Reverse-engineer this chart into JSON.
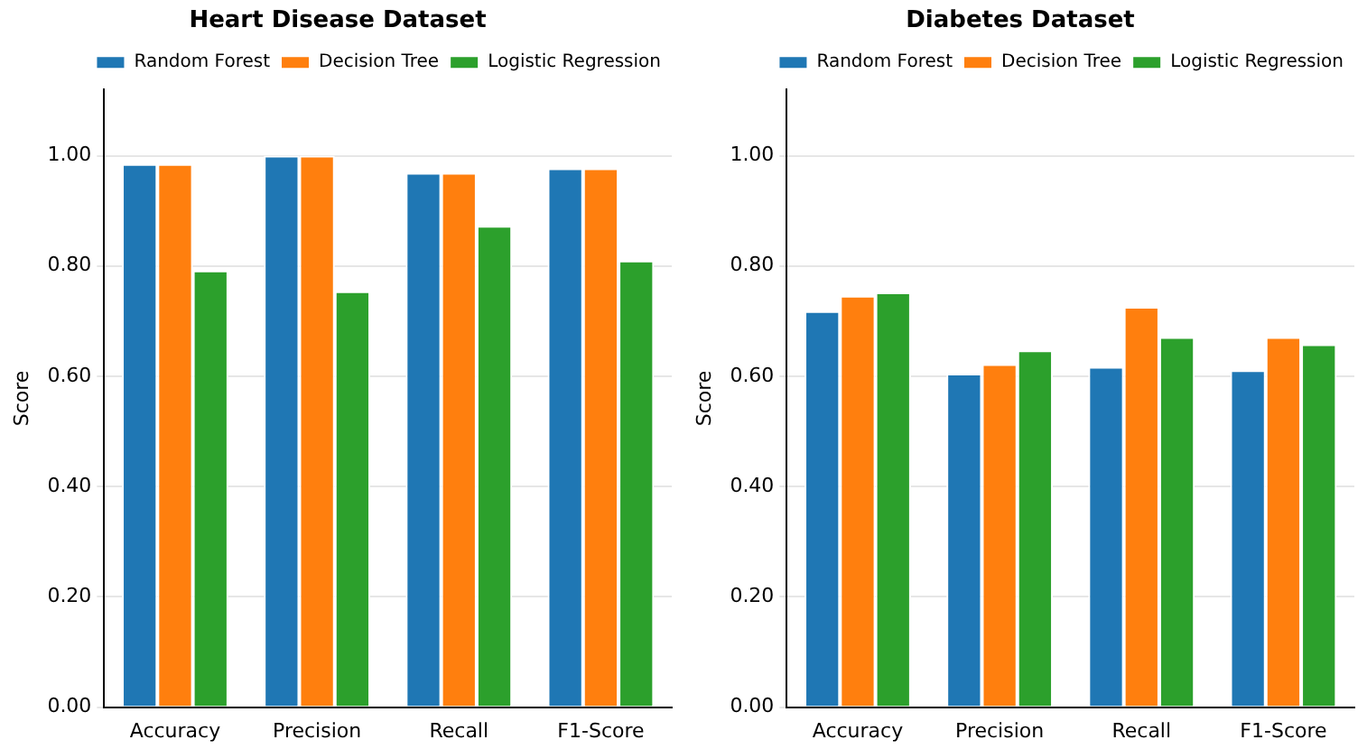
{
  "chart_data": [
    {
      "type": "bar",
      "title": "Heart Disease Dataset",
      "ylabel": "Score",
      "categories": [
        "Accuracy",
        "Precision",
        "Recall",
        "F1-Score"
      ],
      "series": [
        {
          "name": "Random Forest",
          "color": "#1f77b4",
          "values": [
            0.985,
            1.0,
            0.969,
            0.977
          ]
        },
        {
          "name": "Decision Tree",
          "color": "#ff7f0e",
          "values": [
            0.985,
            1.0,
            0.969,
            0.977
          ]
        },
        {
          "name": "Logistic Regression",
          "color": "#2ca02c",
          "values": [
            0.792,
            0.754,
            0.873,
            0.81
          ]
        }
      ],
      "ylim": [
        0,
        1.12
      ],
      "yticks": [
        {
          "value": 0,
          "label": "0.00"
        },
        {
          "value": 0.2,
          "label": "0.20"
        },
        {
          "value": 0.4,
          "label": "0.40"
        },
        {
          "value": 0.6,
          "label": "0.60"
        },
        {
          "value": 0.8,
          "label": "0.80"
        },
        {
          "value": 1,
          "label": "1.00"
        }
      ],
      "grid": "y",
      "legend": "top right"
    },
    {
      "type": "bar",
      "title": "Diabetes Dataset",
      "ylabel": "Score",
      "categories": [
        "Accuracy",
        "Precision",
        "Recall",
        "F1-Score"
      ],
      "series": [
        {
          "name": "Random Forest",
          "color": "#1f77b4",
          "values": [
            0.718,
            0.605,
            0.617,
            0.611
          ]
        },
        {
          "name": "Decision Tree",
          "color": "#ff7f0e",
          "values": [
            0.746,
            0.622,
            0.726,
            0.671
          ]
        },
        {
          "name": "Logistic Regression",
          "color": "#2ca02c",
          "values": [
            0.752,
            0.647,
            0.671,
            0.658
          ]
        }
      ],
      "ylim": [
        0,
        1.12
      ],
      "yticks": [
        {
          "value": 0,
          "label": "0.00"
        },
        {
          "value": 0.2,
          "label": "0.20"
        },
        {
          "value": 0.4,
          "label": "0.40"
        },
        {
          "value": 0.6,
          "label": "0.60"
        },
        {
          "value": 0.8,
          "label": "0.80"
        },
        {
          "value": 1,
          "label": "1.00"
        }
      ],
      "grid": "y",
      "legend": "top right"
    }
  ]
}
